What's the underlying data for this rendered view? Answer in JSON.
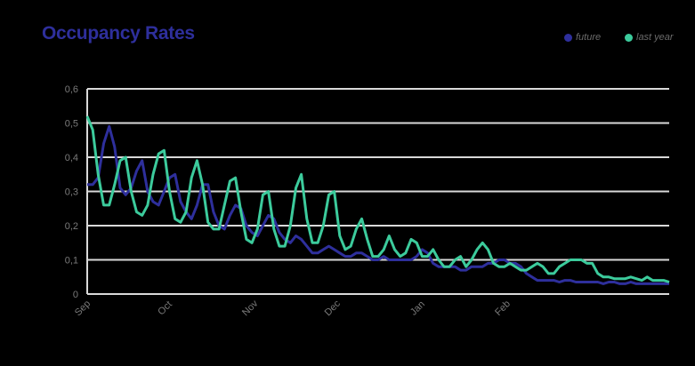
{
  "title": "Occupancy Rates",
  "legend": [
    {
      "label": "future",
      "color": "#2e2f9c"
    },
    {
      "label": "last year",
      "color": "#3ccb9c"
    }
  ],
  "colors": {
    "background": "#000000",
    "grid": "#d9d9d9",
    "tick_text": "#7a7a7a",
    "title": "#2e2f9c"
  },
  "chart_data": {
    "type": "line",
    "title": "Occupancy Rates",
    "xlabel": "",
    "ylabel": "",
    "ylim": [
      0,
      0.6
    ],
    "yticks": [
      "0",
      "0,1",
      "0,2",
      "0,3",
      "0,4",
      "0,5",
      "0,6"
    ],
    "xticks": [
      "Sep",
      "Oct",
      "Nov",
      "Dec",
      "Jan",
      "Feb"
    ],
    "grid": true,
    "legend_position": "top-right",
    "series": [
      {
        "name": "future",
        "color": "#2e2f9c",
        "points": [
          [
            0,
            0.32
          ],
          [
            2,
            0.32
          ],
          [
            4,
            0.34
          ],
          [
            6,
            0.44
          ],
          [
            8,
            0.49
          ],
          [
            10,
            0.43
          ],
          [
            12,
            0.31
          ],
          [
            14,
            0.29
          ],
          [
            16,
            0.31
          ],
          [
            18,
            0.36
          ],
          [
            20,
            0.39
          ],
          [
            22,
            0.3
          ],
          [
            24,
            0.27
          ],
          [
            26,
            0.26
          ],
          [
            28,
            0.3
          ],
          [
            30,
            0.34
          ],
          [
            32,
            0.35
          ],
          [
            34,
            0.27
          ],
          [
            36,
            0.24
          ],
          [
            38,
            0.22
          ],
          [
            40,
            0.26
          ],
          [
            42,
            0.32
          ],
          [
            44,
            0.32
          ],
          [
            46,
            0.24
          ],
          [
            48,
            0.2
          ],
          [
            50,
            0.19
          ],
          [
            52,
            0.23
          ],
          [
            54,
            0.26
          ],
          [
            56,
            0.25
          ],
          [
            58,
            0.2
          ],
          [
            60,
            0.18
          ],
          [
            62,
            0.17
          ],
          [
            64,
            0.2
          ],
          [
            66,
            0.23
          ],
          [
            68,
            0.22
          ],
          [
            70,
            0.18
          ],
          [
            72,
            0.16
          ],
          [
            74,
            0.15
          ],
          [
            76,
            0.17
          ],
          [
            78,
            0.16
          ],
          [
            80,
            0.14
          ],
          [
            82,
            0.12
          ],
          [
            84,
            0.12
          ],
          [
            86,
            0.13
          ],
          [
            88,
            0.14
          ],
          [
            90,
            0.13
          ],
          [
            92,
            0.12
          ],
          [
            94,
            0.11
          ],
          [
            96,
            0.11
          ],
          [
            98,
            0.12
          ],
          [
            100,
            0.12
          ],
          [
            102,
            0.11
          ],
          [
            104,
            0.1
          ],
          [
            106,
            0.1
          ],
          [
            108,
            0.11
          ],
          [
            110,
            0.1
          ],
          [
            112,
            0.1
          ],
          [
            114,
            0.1
          ],
          [
            116,
            0.1
          ],
          [
            118,
            0.1
          ],
          [
            120,
            0.11
          ],
          [
            122,
            0.13
          ],
          [
            124,
            0.12
          ],
          [
            126,
            0.09
          ],
          [
            128,
            0.08
          ],
          [
            130,
            0.08
          ],
          [
            132,
            0.08
          ],
          [
            134,
            0.08
          ],
          [
            136,
            0.07
          ],
          [
            138,
            0.07
          ],
          [
            140,
            0.08
          ],
          [
            142,
            0.08
          ],
          [
            144,
            0.08
          ],
          [
            146,
            0.09
          ],
          [
            148,
            0.09
          ],
          [
            150,
            0.1
          ],
          [
            152,
            0.1
          ],
          [
            154,
            0.09
          ],
          [
            156,
            0.09
          ],
          [
            158,
            0.08
          ],
          [
            160,
            0.06
          ],
          [
            162,
            0.05
          ],
          [
            164,
            0.04
          ],
          [
            166,
            0.04
          ],
          [
            168,
            0.04
          ],
          [
            170,
            0.04
          ],
          [
            172,
            0.035
          ],
          [
            174,
            0.04
          ],
          [
            176,
            0.04
          ],
          [
            178,
            0.035
          ],
          [
            180,
            0.035
          ],
          [
            182,
            0.035
          ],
          [
            184,
            0.035
          ],
          [
            186,
            0.035
          ],
          [
            188,
            0.03
          ],
          [
            190,
            0.035
          ],
          [
            192,
            0.035
          ],
          [
            194,
            0.03
          ],
          [
            196,
            0.03
          ],
          [
            198,
            0.035
          ],
          [
            200,
            0.03
          ],
          [
            202,
            0.03
          ],
          [
            204,
            0.03
          ],
          [
            206,
            0.03
          ],
          [
            208,
            0.03
          ],
          [
            210,
            0.03
          ],
          [
            212,
            0.03
          ]
        ]
      },
      {
        "name": "last year",
        "color": "#3ccb9c",
        "points": [
          [
            0,
            0.52
          ],
          [
            2,
            0.48
          ],
          [
            4,
            0.35
          ],
          [
            6,
            0.26
          ],
          [
            8,
            0.26
          ],
          [
            10,
            0.32
          ],
          [
            12,
            0.39
          ],
          [
            14,
            0.4
          ],
          [
            16,
            0.3
          ],
          [
            18,
            0.24
          ],
          [
            20,
            0.23
          ],
          [
            22,
            0.26
          ],
          [
            24,
            0.35
          ],
          [
            26,
            0.41
          ],
          [
            28,
            0.42
          ],
          [
            30,
            0.3
          ],
          [
            32,
            0.22
          ],
          [
            34,
            0.21
          ],
          [
            36,
            0.24
          ],
          [
            38,
            0.34
          ],
          [
            40,
            0.39
          ],
          [
            42,
            0.32
          ],
          [
            44,
            0.21
          ],
          [
            46,
            0.19
          ],
          [
            48,
            0.19
          ],
          [
            50,
            0.26
          ],
          [
            52,
            0.33
          ],
          [
            54,
            0.34
          ],
          [
            56,
            0.24
          ],
          [
            58,
            0.16
          ],
          [
            60,
            0.15
          ],
          [
            62,
            0.19
          ],
          [
            64,
            0.29
          ],
          [
            66,
            0.3
          ],
          [
            68,
            0.19
          ],
          [
            70,
            0.14
          ],
          [
            72,
            0.14
          ],
          [
            74,
            0.2
          ],
          [
            76,
            0.31
          ],
          [
            78,
            0.35
          ],
          [
            80,
            0.22
          ],
          [
            82,
            0.15
          ],
          [
            84,
            0.15
          ],
          [
            86,
            0.2
          ],
          [
            88,
            0.29
          ],
          [
            90,
            0.3
          ],
          [
            92,
            0.17
          ],
          [
            94,
            0.13
          ],
          [
            96,
            0.14
          ],
          [
            98,
            0.19
          ],
          [
            100,
            0.22
          ],
          [
            102,
            0.16
          ],
          [
            104,
            0.11
          ],
          [
            106,
            0.11
          ],
          [
            108,
            0.13
          ],
          [
            110,
            0.17
          ],
          [
            112,
            0.13
          ],
          [
            114,
            0.11
          ],
          [
            116,
            0.12
          ],
          [
            118,
            0.16
          ],
          [
            120,
            0.15
          ],
          [
            122,
            0.11
          ],
          [
            124,
            0.11
          ],
          [
            126,
            0.13
          ],
          [
            128,
            0.1
          ],
          [
            130,
            0.08
          ],
          [
            132,
            0.08
          ],
          [
            134,
            0.1
          ],
          [
            136,
            0.11
          ],
          [
            138,
            0.08
          ],
          [
            140,
            0.1
          ],
          [
            142,
            0.13
          ],
          [
            144,
            0.15
          ],
          [
            146,
            0.13
          ],
          [
            148,
            0.09
          ],
          [
            150,
            0.08
          ],
          [
            152,
            0.08
          ],
          [
            154,
            0.09
          ],
          [
            156,
            0.08
          ],
          [
            158,
            0.07
          ],
          [
            160,
            0.07
          ],
          [
            162,
            0.08
          ],
          [
            164,
            0.09
          ],
          [
            166,
            0.08
          ],
          [
            168,
            0.06
          ],
          [
            170,
            0.06
          ],
          [
            172,
            0.08
          ],
          [
            174,
            0.09
          ],
          [
            176,
            0.1
          ],
          [
            178,
            0.1
          ],
          [
            180,
            0.1
          ],
          [
            182,
            0.09
          ],
          [
            184,
            0.09
          ],
          [
            186,
            0.06
          ],
          [
            188,
            0.05
          ],
          [
            190,
            0.05
          ],
          [
            192,
            0.045
          ],
          [
            194,
            0.045
          ],
          [
            196,
            0.045
          ],
          [
            198,
            0.05
          ],
          [
            200,
            0.045
          ],
          [
            202,
            0.04
          ],
          [
            204,
            0.05
          ],
          [
            206,
            0.04
          ],
          [
            208,
            0.04
          ],
          [
            210,
            0.04
          ],
          [
            212,
            0.035
          ]
        ]
      }
    ]
  }
}
